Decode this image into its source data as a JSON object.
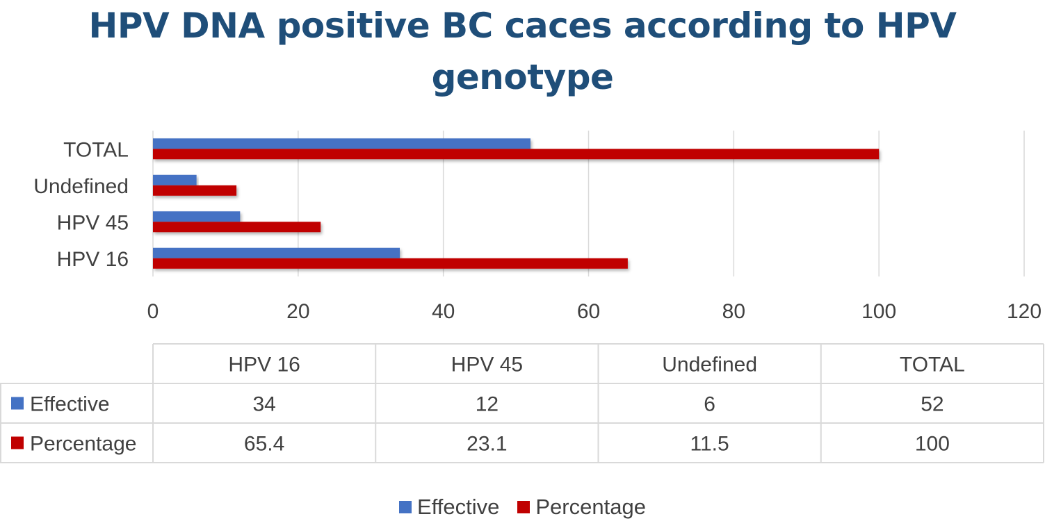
{
  "title": {
    "line1": "HPV DNA positive BC caces according to HPV",
    "line2": "genotype"
  },
  "colors": {
    "effective": "#4472c4",
    "percentage": "#c00000",
    "grid": "#d9d9d9",
    "text": "#404040",
    "title": "#1f4e79"
  },
  "chart_data": {
    "type": "bar",
    "orientation": "horizontal",
    "title": "HPV DNA positive BC caces according to HPV genotype",
    "categories": [
      "HPV 16",
      "HPV 45",
      "Undefined",
      "TOTAL"
    ],
    "series": [
      {
        "name": "Effective",
        "color": "#4472c4",
        "values": [
          34,
          12,
          6,
          52
        ]
      },
      {
        "name": "Percentage",
        "color": "#c00000",
        "values": [
          65.4,
          23.1,
          11.5,
          100
        ]
      }
    ],
    "xlim": [
      0,
      120
    ],
    "xticks": [
      0,
      20,
      40,
      60,
      80,
      100,
      120
    ],
    "xtick_labels": [
      "0",
      "20",
      "40",
      "60",
      "80",
      "100",
      "120"
    ],
    "grid": "vertical",
    "data_table": {
      "headers": [
        "HPV 16",
        "HPV 45",
        "Undefined",
        "TOTAL"
      ],
      "rows": [
        {
          "label": "Effective",
          "values": [
            "34",
            "12",
            "6",
            "52"
          ]
        },
        {
          "label": "Percentage",
          "values": [
            "65.4",
            "23.1",
            "11.5",
            "100"
          ]
        }
      ]
    },
    "legend": {
      "position": "bottom",
      "entries": [
        "Effective",
        "Percentage"
      ]
    }
  }
}
